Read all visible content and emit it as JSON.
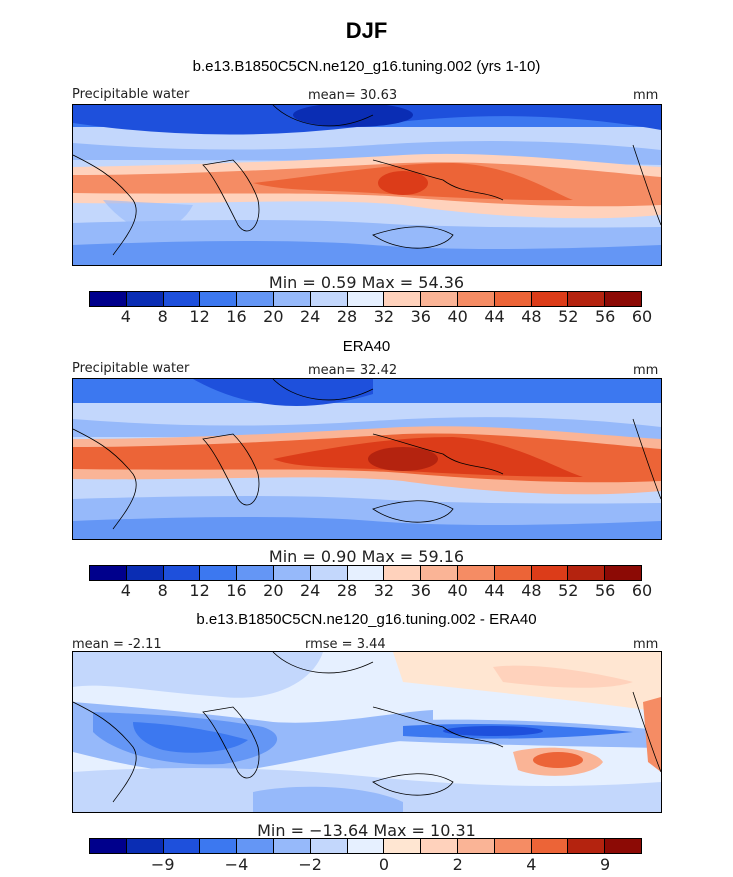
{
  "figure": {
    "title": "DJF"
  },
  "panel1": {
    "subtitle": "b.e13.B1850C5CN.ne120_g16.tuning.002 (yrs 1-10)",
    "left_label": "Precipitable water",
    "center_label": "mean=  30.63",
    "right_label": "mm",
    "min_max": "Min =    0.59  Max =   54.36",
    "colorbar_ticks": [
      "4",
      "8",
      "12",
      "16",
      "20",
      "24",
      "28",
      "32",
      "36",
      "40",
      "44",
      "48",
      "52",
      "56",
      "60"
    ]
  },
  "panel2": {
    "subtitle": "ERA40",
    "left_label": "Precipitable water",
    "center_label": "mean=  32.42",
    "right_label": "mm",
    "min_max": "Min =    0.90  Max =   59.16",
    "colorbar_ticks": [
      "4",
      "8",
      "12",
      "16",
      "20",
      "24",
      "28",
      "32",
      "36",
      "40",
      "44",
      "48",
      "52",
      "56",
      "60"
    ]
  },
  "panel3": {
    "subtitle": "b.e13.B1850C5CN.ne120_g16.tuning.002 - ERA40",
    "left_label": "mean =  -2.11",
    "center_label": "rmse =    3.44",
    "right_label": "mm",
    "min_max": "Min = −13.64  Max =   10.31",
    "colorbar_ticks": [
      "−9",
      "−4",
      "−2",
      "0",
      "2",
      "4",
      "9"
    ]
  },
  "colors": {
    "abs_scale": [
      "#00008c",
      "#0a2db4",
      "#1e50dc",
      "#3c78f0",
      "#6496f5",
      "#96b9fa",
      "#c3d7fc",
      "#e6f0ff",
      "#ffd2bc",
      "#fab496",
      "#f58c64",
      "#ec6437",
      "#dc3c19",
      "#b4230f",
      "#8c0a05"
    ],
    "diff_scale": [
      "#00008c",
      "#0a2db4",
      "#1e50dc",
      "#3c78f0",
      "#6496f5",
      "#96b9fa",
      "#c3d7fc",
      "#e6f0ff",
      "#ffe6d2",
      "#ffd2bc",
      "#fab496",
      "#f58c64",
      "#ec6437",
      "#b4230f",
      "#8c0a05"
    ]
  }
}
